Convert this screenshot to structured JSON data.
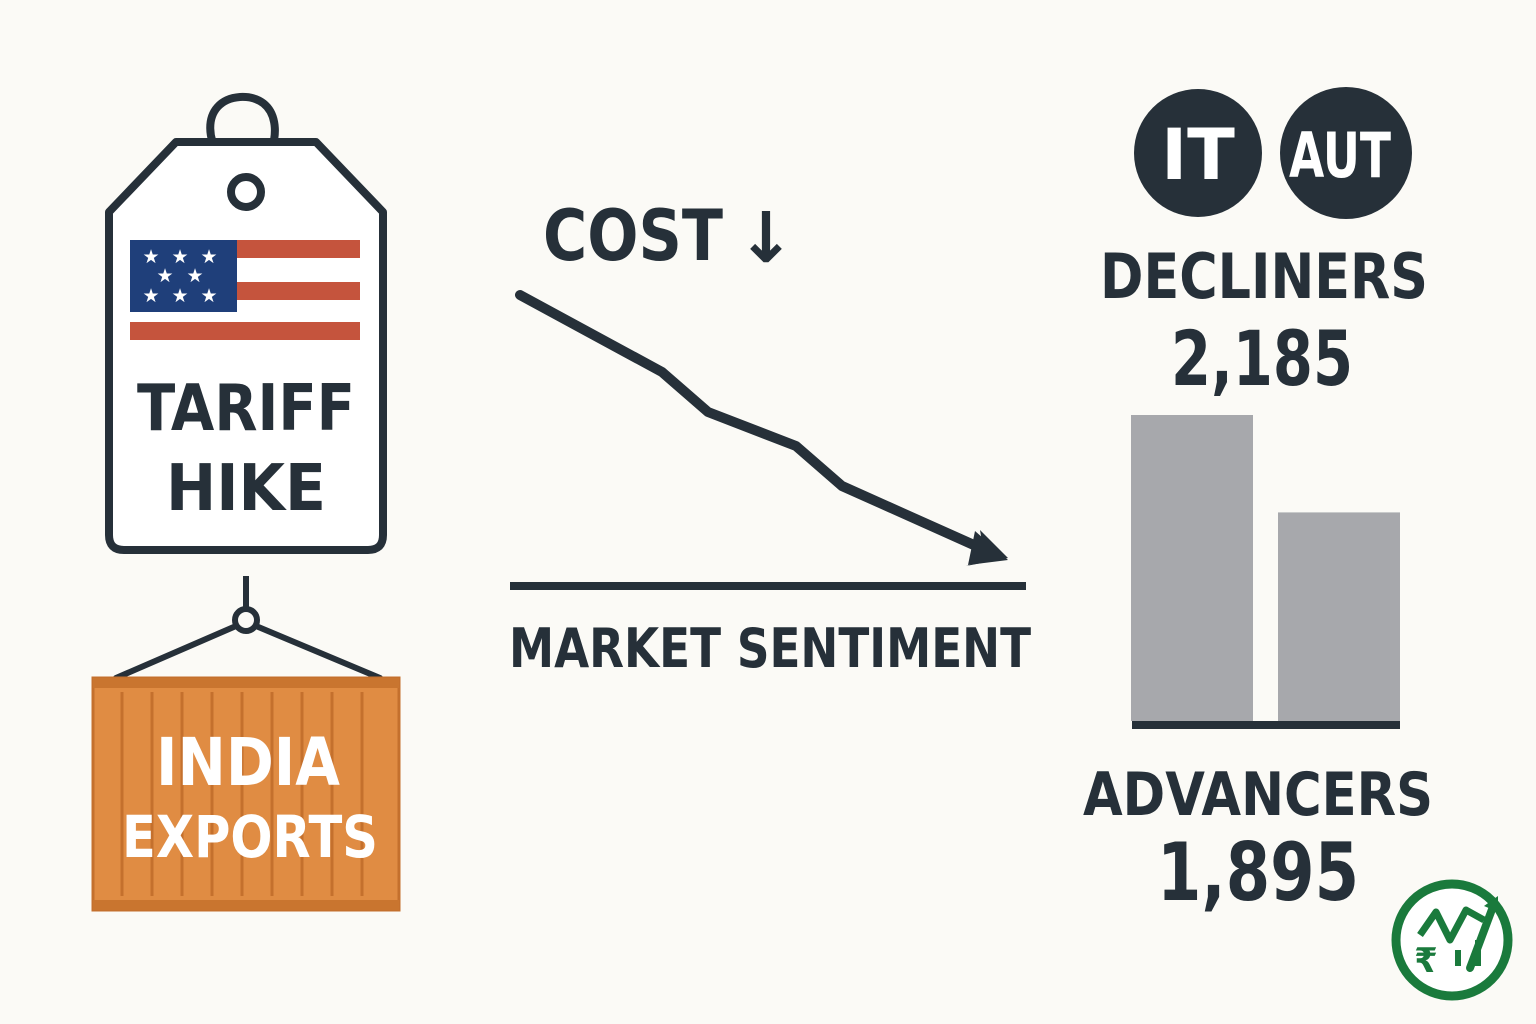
{
  "colors": {
    "background": "#fbfaf6",
    "ink": "#263039",
    "flag_red": "#c5543d",
    "flag_blue": "#1f3f7a",
    "container_orange": "#e08c43",
    "bar_gray": "#a7a8ac",
    "logo_green": "#1a7a3c"
  },
  "tag": {
    "icon": "price-tag-icon",
    "flag_icon": "us-flag-icon",
    "line1": "TARIFF",
    "line2": "HIKE"
  },
  "container": {
    "icon": "shipping-container-icon",
    "line1": "INDIA",
    "line2": "EXPORTS"
  },
  "cost": {
    "label": "COST",
    "arrow": "↓"
  },
  "trend": {
    "icon": "downward-trend-arrow",
    "baseline_label": "MARKET SENTIMENT"
  },
  "sectors": [
    {
      "label": "IT"
    },
    {
      "label": "AUT"
    }
  ],
  "breadth": {
    "decliners_label": "DECLINERS",
    "decliners_value": "2,185",
    "advancers_label": "ADVANCERS",
    "advancers_value": "1,895"
  },
  "chart_data": {
    "type": "bar",
    "categories": [
      "DECLINERS",
      "ADVANCERS"
    ],
    "values": [
      2185,
      1895
    ],
    "ylim": [
      0,
      2185
    ]
  },
  "logo": {
    "icon": "rupee-growth-logo",
    "mark": "₹"
  }
}
